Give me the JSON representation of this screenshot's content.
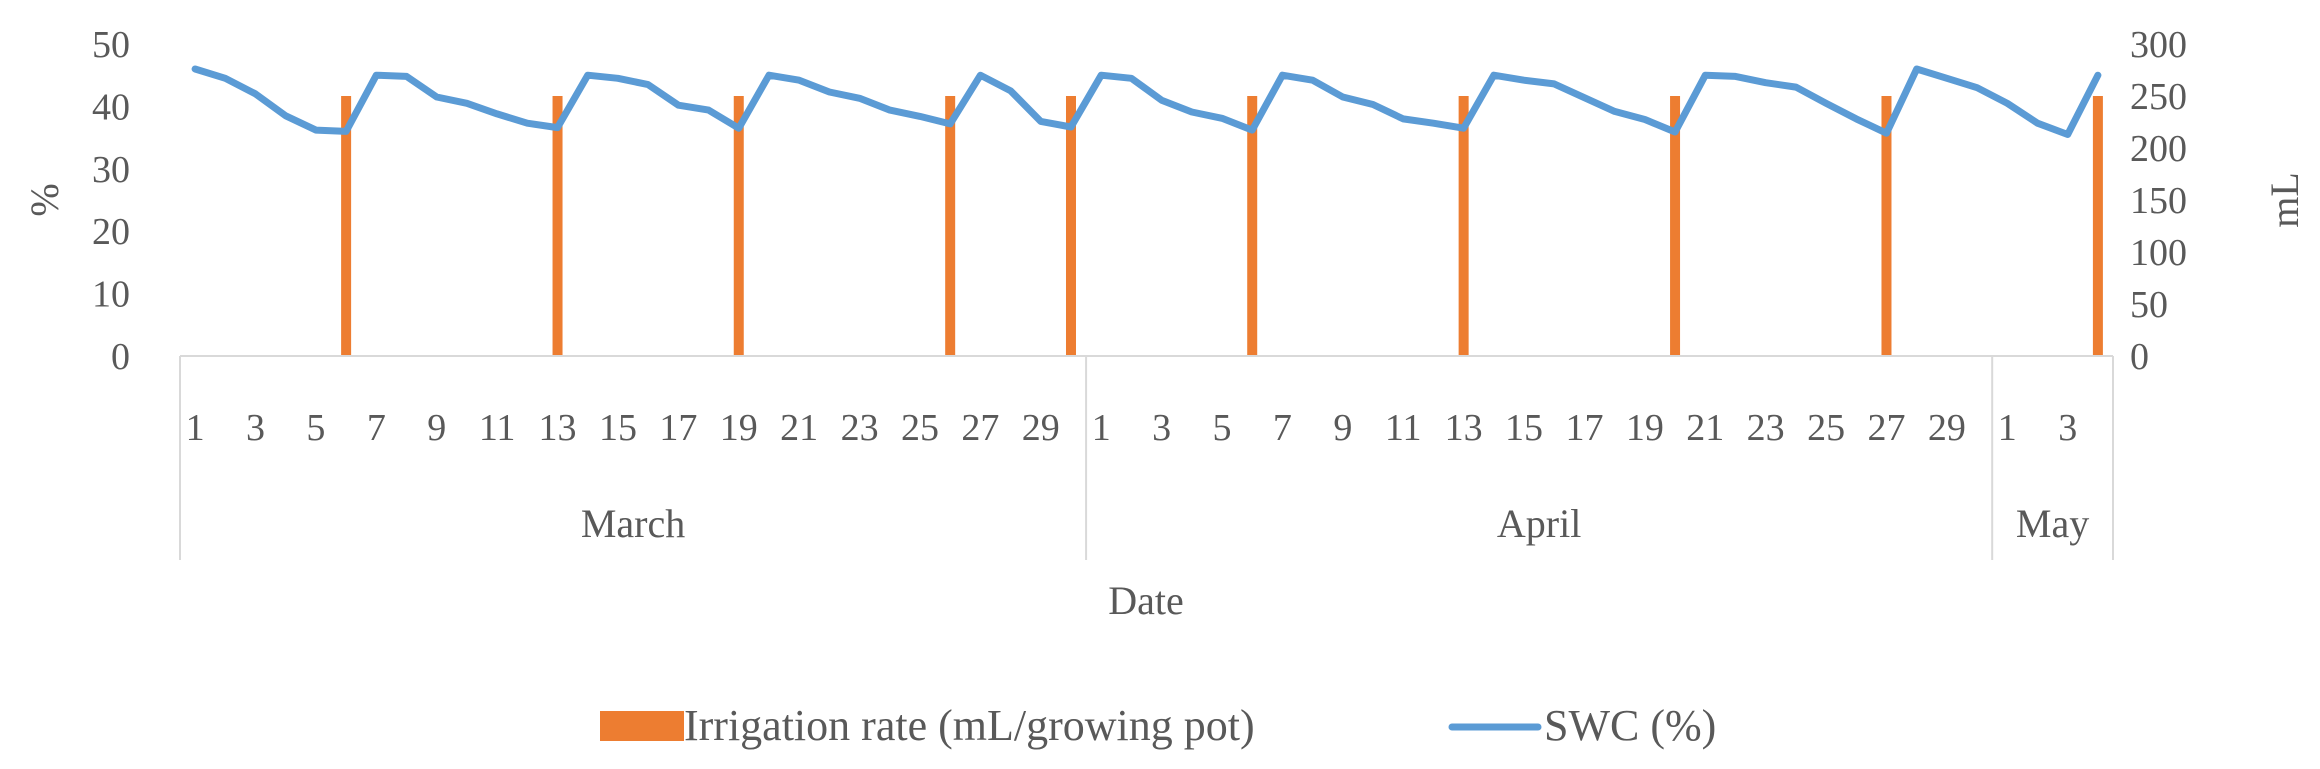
{
  "chart_data": {
    "type": "bar+line",
    "title": "",
    "xlabel": "Date",
    "ylabel_left": "%",
    "ylabel_right": "mL",
    "ylim_left": [
      0,
      50
    ],
    "yticks_left": [
      0,
      10,
      20,
      30,
      40,
      50
    ],
    "ylim_right": [
      0,
      300
    ],
    "yticks_right": [
      0,
      50,
      100,
      150,
      200,
      250,
      300
    ],
    "grid": false,
    "legend_position": "bottom",
    "colors": {
      "irrigation": "#ED7D31",
      "swc": "#5B9BD5",
      "text": "#595959",
      "axis": "#D9D9D9"
    },
    "groups": [
      {
        "name": "March",
        "days": [
          1,
          2,
          3,
          4,
          5,
          6,
          7,
          8,
          9,
          10,
          11,
          12,
          13,
          14,
          15,
          16,
          17,
          18,
          19,
          20,
          21,
          22,
          23,
          24,
          25,
          26,
          27,
          28,
          29,
          30
        ]
      },
      {
        "name": "April",
        "days": [
          1,
          2,
          3,
          4,
          5,
          6,
          7,
          8,
          9,
          10,
          11,
          12,
          13,
          14,
          15,
          16,
          17,
          18,
          19,
          20,
          21,
          22,
          23,
          24,
          25,
          26,
          27,
          28,
          29,
          30
        ]
      },
      {
        "name": "May",
        "days": [
          1,
          2,
          3,
          4
        ]
      }
    ],
    "x_tick_labels_shown": [
      [
        "1",
        "3",
        "5",
        "7",
        "9",
        "11",
        "13",
        "15",
        "17",
        "19",
        "21",
        "23",
        "25",
        "27",
        "29"
      ],
      [
        "1",
        "3",
        "5",
        "7",
        "9",
        "11",
        "13",
        "15",
        "17",
        "19",
        "21",
        "23",
        "25",
        "27",
        "29"
      ],
      [
        "1",
        "3"
      ]
    ],
    "series": [
      {
        "name": "Irrigation rate (mL/growing pot)",
        "type": "bar",
        "axis": "right",
        "values": [
          0,
          0,
          0,
          0,
          0,
          250,
          0,
          0,
          0,
          0,
          0,
          0,
          250,
          0,
          0,
          0,
          0,
          0,
          250,
          0,
          0,
          0,
          0,
          0,
          0,
          250,
          0,
          0,
          0,
          250,
          0,
          0,
          0,
          0,
          0,
          250,
          0,
          0,
          0,
          0,
          0,
          0,
          250,
          0,
          0,
          0,
          0,
          0,
          0,
          250,
          0,
          0,
          0,
          0,
          0,
          0,
          250,
          0,
          0,
          0,
          0,
          0,
          0,
          250
        ]
      },
      {
        "name": "SWC (%)",
        "type": "line",
        "axis": "left",
        "values": [
          46,
          44.5,
          42,
          38.5,
          36.2,
          36,
          45,
          44.8,
          41.5,
          40.5,
          38.8,
          37.3,
          36.6,
          45,
          44.5,
          43.5,
          40.2,
          39.4,
          36.5,
          45,
          44.2,
          42.3,
          41.3,
          39.4,
          38.4,
          37.2,
          45,
          42.5,
          37.6,
          36.7,
          45,
          44.5,
          41,
          39.1,
          38.1,
          36.2,
          45,
          44.2,
          41.5,
          40.3,
          38,
          37.3,
          36.5,
          45,
          44.2,
          43.6,
          41.4,
          39.2,
          37.9,
          35.9,
          45,
          44.8,
          43.8,
          43.1,
          40.5,
          38,
          35.7,
          46,
          44.5,
          43,
          40.5,
          37.3,
          35.5,
          45
        ]
      }
    ]
  },
  "legend": {
    "irrigation_label": "Irrigation rate (mL/growing pot)",
    "swc_label": "SWC (%)"
  }
}
